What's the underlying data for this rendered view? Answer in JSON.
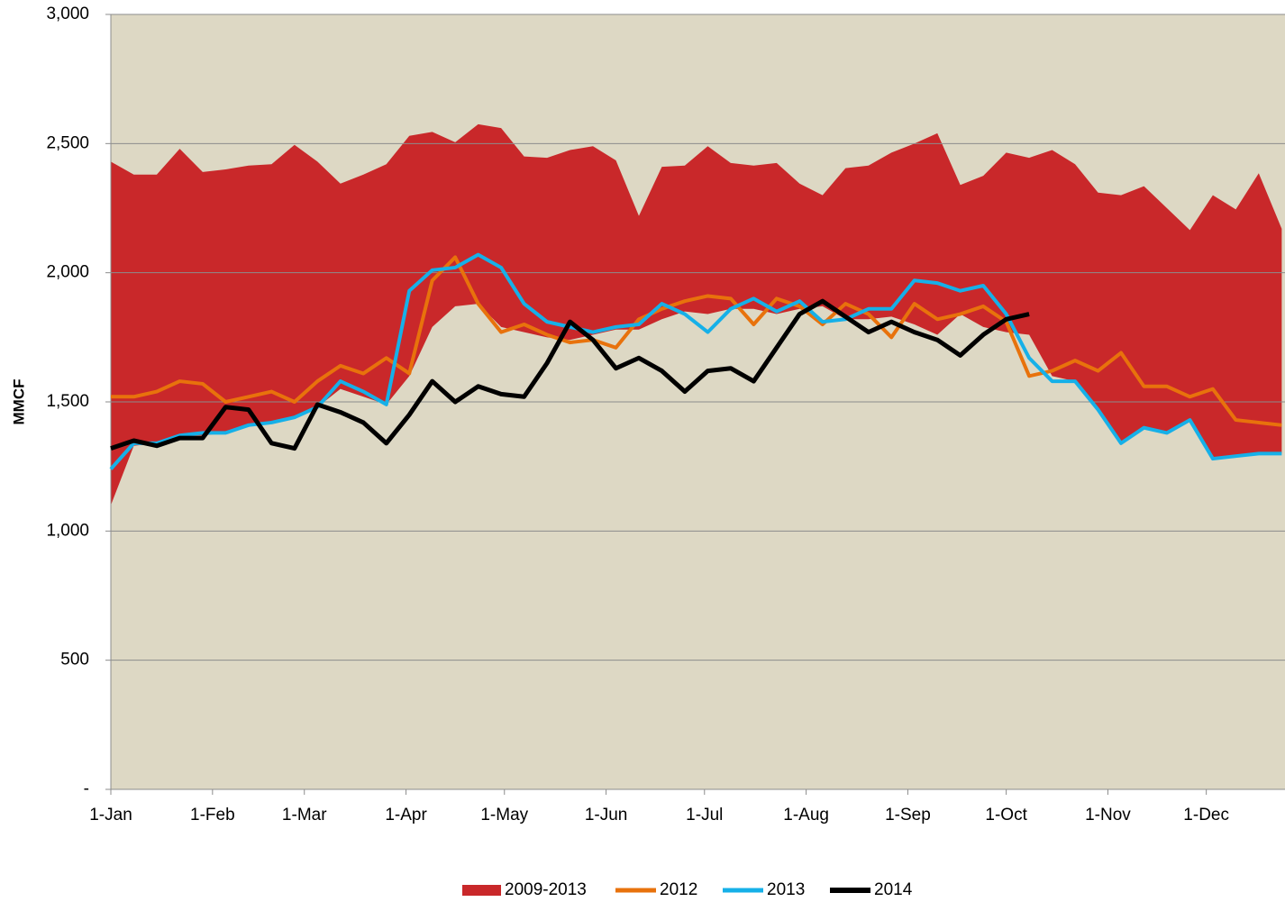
{
  "chart_data": {
    "type": "line",
    "y_label": "MMCF",
    "xlim": [
      0,
      358
    ],
    "xticks": [
      {
        "value": 0,
        "label": "1-Jan"
      },
      {
        "value": 31,
        "label": "1-Feb"
      },
      {
        "value": 59,
        "label": "1-Mar"
      },
      {
        "value": 90,
        "label": "1-Apr"
      },
      {
        "value": 120,
        "label": "1-May"
      },
      {
        "value": 151,
        "label": "1-Jun"
      },
      {
        "value": 181,
        "label": "1-Jul"
      },
      {
        "value": 212,
        "label": "1-Aug"
      },
      {
        "value": 243,
        "label": "1-Sep"
      },
      {
        "value": 273,
        "label": "1-Oct"
      },
      {
        "value": 304,
        "label": "1-Nov"
      },
      {
        "value": 334,
        "label": "1-Dec"
      }
    ],
    "ylim": [
      0,
      3000
    ],
    "yticks": [
      {
        "value": 0,
        "label": "-"
      },
      500,
      {
        "value": 1000,
        "label": "1,000"
      },
      {
        "value": 1500,
        "label": "1,500"
      },
      {
        "value": 2000,
        "label": "2,000"
      },
      {
        "value": 2500,
        "label": "2,500"
      },
      {
        "value": 3000,
        "label": "3,000"
      }
    ],
    "grid": true,
    "legend": "bottom",
    "background": "#ddd8c4",
    "x": [
      0,
      7,
      14,
      21,
      28,
      35,
      42,
      49,
      56,
      63,
      70,
      77,
      84,
      91,
      98,
      105,
      112,
      119,
      126,
      133,
      140,
      147,
      154,
      161,
      168,
      175,
      182,
      189,
      196,
      203,
      210,
      217,
      224,
      231,
      238,
      245,
      252,
      259,
      266,
      273,
      280,
      287,
      294,
      301,
      308,
      315,
      322,
      329,
      336,
      343,
      350,
      357
    ],
    "band": {
      "name": "2009-2013",
      "color": "#c9282a",
      "upper": [
        2430,
        2380,
        2380,
        2480,
        2390,
        2400,
        2415,
        2420,
        2495,
        2430,
        2345,
        2380,
        2420,
        2530,
        2545,
        2505,
        2575,
        2560,
        2450,
        2445,
        2475,
        2490,
        2435,
        2220,
        2410,
        2415,
        2490,
        2425,
        2415,
        2425,
        2345,
        2300,
        2405,
        2415,
        2465,
        2500,
        2540,
        2340,
        2375,
        2465,
        2445,
        2475,
        2420,
        2310,
        2300,
        2335,
        2250,
        2165,
        2300,
        2245,
        2385,
        2170
      ],
      "lower": [
        1100,
        1330,
        1340,
        1370,
        1370,
        1380,
        1410,
        1420,
        1440,
        1480,
        1550,
        1520,
        1490,
        1600,
        1790,
        1870,
        1880,
        1790,
        1770,
        1750,
        1740,
        1760,
        1780,
        1780,
        1820,
        1850,
        1840,
        1860,
        1860,
        1840,
        1860,
        1870,
        1820,
        1820,
        1830,
        1800,
        1760,
        1840,
        1790,
        1770,
        1760,
        1600,
        1580,
        1470,
        1340,
        1400,
        1380,
        1430,
        1280,
        1290,
        1300,
        1300
      ]
    },
    "series": [
      {
        "name": "2012",
        "color": "#e8720c",
        "values": [
          1520,
          1520,
          1540,
          1580,
          1570,
          1500,
          1520,
          1540,
          1500,
          1580,
          1640,
          1610,
          1670,
          1610,
          1970,
          2060,
          1880,
          1770,
          1800,
          1760,
          1730,
          1740,
          1710,
          1820,
          1860,
          1890,
          1910,
          1900,
          1800,
          1900,
          1870,
          1800,
          1880,
          1840,
          1750,
          1880,
          1820,
          1840,
          1870,
          1810,
          1600,
          1620,
          1660,
          1620,
          1690,
          1560,
          1560,
          1520,
          1550,
          1430,
          1420,
          1410
        ]
      },
      {
        "name": "2013",
        "color": "#16b0e8",
        "values": [
          1240,
          1340,
          1340,
          1370,
          1380,
          1380,
          1410,
          1420,
          1440,
          1480,
          1580,
          1540,
          1490,
          1930,
          2010,
          2020,
          2070,
          2020,
          1880,
          1810,
          1790,
          1770,
          1790,
          1800,
          1880,
          1840,
          1770,
          1860,
          1900,
          1850,
          1890,
          1810,
          1820,
          1860,
          1860,
          1970,
          1960,
          1930,
          1950,
          1840,
          1670,
          1580,
          1580,
          1470,
          1340,
          1400,
          1380,
          1430,
          1280,
          1290,
          1300,
          1300
        ]
      },
      {
        "name": "2014",
        "color": "#000000",
        "values": [
          1320,
          1350,
          1330,
          1360,
          1360,
          1480,
          1470,
          1340,
          1320,
          1490,
          1460,
          1420,
          1340,
          1450,
          1580,
          1500,
          1560,
          1530,
          1520,
          1650,
          1810,
          1740,
          1630,
          1670,
          1620,
          1540,
          1620,
          1630,
          1580,
          1710,
          1840,
          1890,
          1830,
          1770,
          1810,
          1770,
          1740,
          1680,
          1760,
          1820,
          1840,
          null,
          null,
          null,
          null,
          null,
          null,
          null,
          null,
          null,
          null,
          null
        ]
      }
    ]
  }
}
